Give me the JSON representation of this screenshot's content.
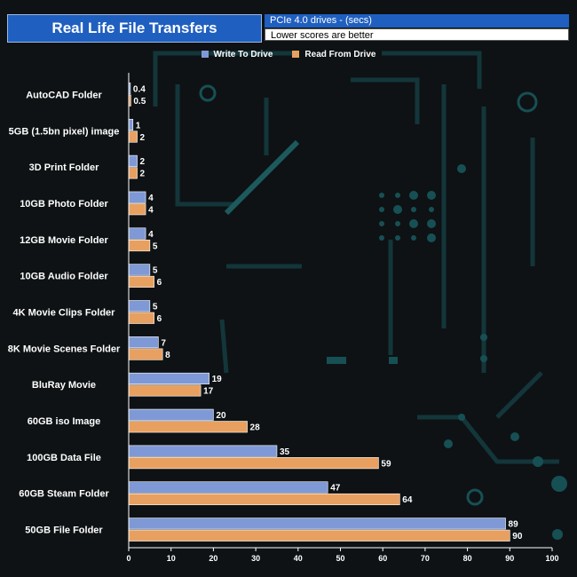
{
  "header": {
    "title": "Real Life File Transfers",
    "subtitle_top": "PCIe 4.0 drives - (secs)",
    "subtitle_bottom": "Lower scores are better"
  },
  "colors": {
    "write": "#7f99d6",
    "read": "#e8a060",
    "title_bg": "#1f5fc0",
    "text": "#ffffff",
    "background": "#0e1214"
  },
  "chart_data": {
    "type": "bar",
    "orientation": "horizontal",
    "categories": [
      "AutoCAD Folder",
      "5GB (1.5bn pixel) image",
      "3D Print Folder",
      "10GB Photo Folder",
      "12GB Movie Folder",
      "10GB Audio Folder",
      "4K Movie Clips Folder",
      "8K Movie Scenes Folder",
      "BluRay Movie",
      "60GB iso Image",
      "100GB Data File",
      "60GB Steam Folder",
      "50GB File Folder"
    ],
    "series": [
      {
        "name": "Write To  Drive",
        "values": [
          0.4,
          1,
          2,
          4,
          4,
          5,
          5,
          7,
          19,
          20,
          35,
          47,
          89
        ]
      },
      {
        "name": "Read From  Drive",
        "values": [
          0.5,
          2,
          2,
          4,
          5,
          6,
          6,
          8,
          17,
          28,
          59,
          64,
          90
        ]
      }
    ],
    "xlim": [
      0,
      100
    ],
    "x_ticks": [
      0,
      10,
      20,
      30,
      40,
      50,
      60,
      70,
      80,
      90,
      100
    ],
    "legend_position": "top-center",
    "grid": false
  }
}
